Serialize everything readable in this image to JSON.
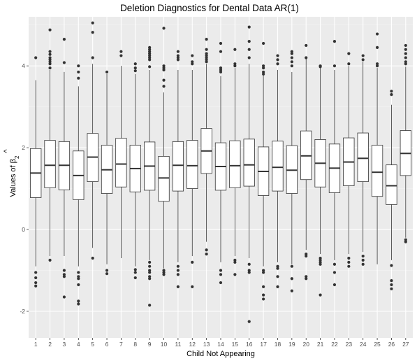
{
  "chart_data": {
    "type": "boxplot",
    "title": "Deletion Diagnostics for Dental Data AR(1)",
    "xlabel": "Child Not Appearing",
    "ylabel_prefix": "Values of ",
    "ylabel_symbol": "β",
    "ylabel_hat": "^",
    "ylabel_subscript": "2",
    "ylim": [
      -2.65,
      5.2
    ],
    "yticks": [
      -2,
      0,
      2,
      4
    ],
    "ytick_labels": [
      "-2",
      "0",
      "2",
      "4"
    ],
    "categories": [
      "1",
      "2",
      "3",
      "4",
      "5",
      "6",
      "7",
      "8",
      "9",
      "10",
      "11",
      "12",
      "13",
      "14",
      "15",
      "16",
      "17",
      "18",
      "19",
      "20",
      "21",
      "22",
      "23",
      "24",
      "25",
      "26",
      "27"
    ],
    "grid": true,
    "colors": {
      "panel": "#ebebeb",
      "grid_major": "#ffffff",
      "grid_minor": "#f4f4f4",
      "box_fill": "#ffffff",
      "line": "#333333",
      "point": "#333333"
    },
    "boxes": [
      {
        "q1": 0.78,
        "median": 1.38,
        "q3": 1.98,
        "wlow": -0.9,
        "whigh": 3.65,
        "outliers": [
          4.2,
          -1.05,
          -1.18,
          -1.3,
          -1.38
        ]
      },
      {
        "q1": 1.02,
        "median": 1.57,
        "q3": 2.18,
        "wlow": -0.65,
        "whigh": 3.9,
        "outliers": [
          4.88,
          4.35,
          4.28,
          4.2,
          4.15,
          4.1,
          4.05,
          3.95,
          -0.75
        ]
      },
      {
        "q1": 0.97,
        "median": 1.57,
        "q3": 2.15,
        "wlow": -0.65,
        "whigh": 3.85,
        "outliers": [
          4.65,
          4.08,
          -1.0,
          -1.1,
          -1.15,
          -1.65
        ]
      },
      {
        "q1": 0.73,
        "median": 1.32,
        "q3": 1.92,
        "wlow": -0.9,
        "whigh": 3.5,
        "outliers": [
          4.0,
          3.85,
          3.7,
          -1.05,
          -1.15,
          -1.2,
          -1.35,
          -1.75,
          -1.82
        ]
      },
      {
        "q1": 1.17,
        "median": 1.77,
        "q3": 2.35,
        "wlow": -0.45,
        "whigh": 4.05,
        "outliers": [
          5.05,
          4.82,
          4.2,
          -0.7
        ]
      },
      {
        "q1": 0.88,
        "median": 1.46,
        "q3": 2.06,
        "wlow": -0.85,
        "whigh": 3.8,
        "outliers": [
          3.85,
          -1.0,
          -1.08
        ]
      },
      {
        "q1": 1.04,
        "median": 1.6,
        "q3": 2.23,
        "wlow": -0.7,
        "whigh": 4.0,
        "outliers": [
          4.35,
          4.25
        ]
      },
      {
        "q1": 0.92,
        "median": 1.49,
        "q3": 2.06,
        "wlow": -0.9,
        "whigh": 3.8,
        "outliers": [
          4.05,
          3.95,
          3.88,
          -0.98,
          -1.05,
          -1.18
        ]
      },
      {
        "q1": 0.96,
        "median": 1.55,
        "q3": 2.14,
        "wlow": -0.75,
        "whigh": 3.9,
        "outliers": [
          4.45,
          4.4,
          4.35,
          4.3,
          4.25,
          4.2,
          4.15,
          3.98,
          -0.8,
          -0.9,
          -1.0,
          -1.05,
          -1.15,
          -1.2,
          -1.85
        ]
      },
      {
        "q1": 0.69,
        "median": 1.26,
        "q3": 1.79,
        "wlow": -0.95,
        "whigh": 3.35,
        "outliers": [
          4.92,
          4.0,
          3.95,
          3.9,
          3.65,
          3.5,
          -1.0,
          -1.05,
          -1.1
        ]
      },
      {
        "q1": 0.94,
        "median": 1.57,
        "q3": 2.15,
        "wlow": -0.8,
        "whigh": 3.9,
        "outliers": [
          4.35,
          4.25,
          4.2,
          4.15,
          -0.9,
          -1.0,
          -1.1,
          -1.4
        ]
      },
      {
        "q1": 1.0,
        "median": 1.56,
        "q3": 2.18,
        "wlow": -0.65,
        "whigh": 3.9,
        "outliers": [
          4.25,
          4.1,
          4.05,
          -0.8,
          -1.4
        ]
      },
      {
        "q1": 1.37,
        "median": 1.92,
        "q3": 2.47,
        "wlow": -0.3,
        "whigh": 4.05,
        "outliers": [
          4.65,
          4.4,
          4.3,
          4.25,
          4.2,
          4.15,
          4.1,
          -0.5,
          -0.6
        ]
      },
      {
        "q1": 0.96,
        "median": 1.54,
        "q3": 2.12,
        "wlow": -0.8,
        "whigh": 3.75,
        "outliers": [
          4.55,
          4.35,
          3.95,
          3.9,
          3.85,
          -1.0,
          -1.1,
          -1.3
        ]
      },
      {
        "q1": 1.02,
        "median": 1.56,
        "q3": 2.17,
        "wlow": -0.65,
        "whigh": 3.95,
        "outliers": [
          4.4,
          4.05,
          4.0,
          -0.75,
          -0.8,
          -1.1
        ]
      },
      {
        "q1": 1.06,
        "median": 1.58,
        "q3": 2.21,
        "wlow": -0.7,
        "whigh": 4.05,
        "outliers": [
          4.95,
          4.6,
          4.4,
          4.2,
          -0.85,
          -1.0,
          -1.05,
          -2.25
        ]
      },
      {
        "q1": 0.83,
        "median": 1.42,
        "q3": 2.02,
        "wlow": -0.9,
        "whigh": 3.8,
        "outliers": [
          4.55,
          4.0,
          3.95,
          3.85,
          3.8,
          -1.0,
          -1.05,
          -1.4,
          -1.6,
          -1.7
        ]
      },
      {
        "q1": 0.94,
        "median": 1.52,
        "q3": 2.16,
        "wlow": -0.8,
        "whigh": 3.9,
        "outliers": [
          4.25,
          4.15,
          4.05,
          -0.9,
          -0.95,
          -1.15,
          -1.4
        ]
      },
      {
        "q1": 0.88,
        "median": 1.45,
        "q3": 2.05,
        "wlow": -0.85,
        "whigh": 3.85,
        "outliers": [
          4.35,
          4.3,
          4.2,
          4.1,
          4.0,
          -0.9,
          -1.2,
          -1.5
        ]
      },
      {
        "q1": 1.22,
        "median": 1.8,
        "q3": 2.41,
        "wlow": -0.5,
        "whigh": 4.2,
        "outliers": [
          4.5,
          4.2,
          -0.6,
          -0.65,
          -1.15,
          -1.2
        ]
      },
      {
        "q1": 1.04,
        "median": 1.62,
        "q3": 2.2,
        "wlow": -0.6,
        "whigh": 3.95,
        "outliers": [
          4.0,
          3.98,
          -0.7,
          -0.75,
          -0.8,
          -0.85,
          -1.6
        ]
      },
      {
        "q1": 0.9,
        "median": 1.5,
        "q3": 2.09,
        "wlow": -0.75,
        "whigh": 3.9,
        "outliers": [
          4.6,
          4.0,
          -0.85,
          -1.05,
          -1.35
        ]
      },
      {
        "q1": 1.07,
        "median": 1.65,
        "q3": 2.24,
        "wlow": -0.6,
        "whigh": 4.0,
        "outliers": [
          4.3,
          4.05,
          -0.7,
          -0.8,
          -0.9
        ]
      },
      {
        "q1": 1.17,
        "median": 1.74,
        "q3": 2.36,
        "wlow": -0.55,
        "whigh": 4.1,
        "outliers": [
          4.25,
          4.15,
          -0.65,
          -0.75,
          -0.85
        ]
      },
      {
        "q1": 0.81,
        "median": 1.4,
        "q3": 2.06,
        "wlow": -0.85,
        "whigh": 3.95,
        "outliers": [
          4.78,
          4.45,
          4.05,
          4.0
        ]
      },
      {
        "q1": 0.61,
        "median": 1.07,
        "q3": 1.58,
        "wlow": -0.75,
        "whigh": 3.05,
        "outliers": [
          3.38,
          3.3,
          -0.88,
          -1.25,
          -1.35,
          -1.45
        ]
      },
      {
        "q1": 1.32,
        "median": 1.86,
        "q3": 2.42,
        "wlow": -0.2,
        "whigh": 3.98,
        "outliers": [
          4.5,
          4.4,
          4.3,
          4.2,
          4.1,
          4.05,
          -0.25,
          -0.3
        ]
      }
    ]
  }
}
